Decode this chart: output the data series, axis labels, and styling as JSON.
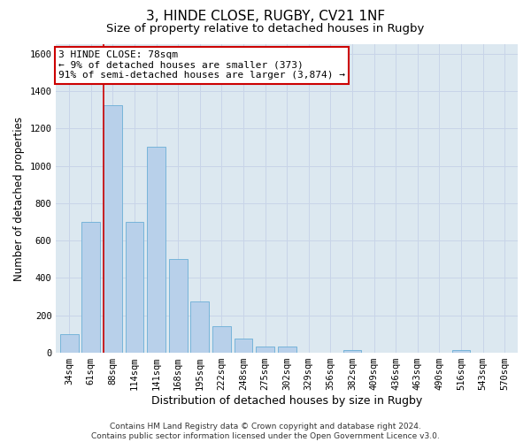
{
  "title1": "3, HINDE CLOSE, RUGBY, CV21 1NF",
  "title2": "Size of property relative to detached houses in Rugby",
  "xlabel": "Distribution of detached houses by size in Rugby",
  "ylabel": "Number of detached properties",
  "bar_labels": [
    "34sqm",
    "61sqm",
    "88sqm",
    "114sqm",
    "141sqm",
    "168sqm",
    "195sqm",
    "222sqm",
    "248sqm",
    "275sqm",
    "302sqm",
    "329sqm",
    "356sqm",
    "382sqm",
    "409sqm",
    "436sqm",
    "463sqm",
    "490sqm",
    "516sqm",
    "543sqm",
    "570sqm"
  ],
  "bar_values": [
    100,
    700,
    1325,
    700,
    1100,
    500,
    275,
    140,
    75,
    35,
    35,
    0,
    0,
    15,
    0,
    0,
    0,
    0,
    15,
    0,
    0
  ],
  "bar_color": "#b8d0ea",
  "bar_edge_color": "#6aaed6",
  "vline_x_index": 2,
  "vline_color": "#cc0000",
  "annotation_text": "3 HINDE CLOSE: 78sqm\n← 9% of detached houses are smaller (373)\n91% of semi-detached houses are larger (3,874) →",
  "annotation_box_color": "#ffffff",
  "annotation_box_edge": "#cc0000",
  "ylim": [
    0,
    1650
  ],
  "yticks": [
    0,
    200,
    400,
    600,
    800,
    1000,
    1200,
    1400,
    1600
  ],
  "grid_color": "#c8d4e8",
  "bg_color": "#dce8f0",
  "footer": "Contains HM Land Registry data © Crown copyright and database right 2024.\nContains public sector information licensed under the Open Government Licence v3.0.",
  "title1_fontsize": 11,
  "title2_fontsize": 9.5,
  "xlabel_fontsize": 9,
  "ylabel_fontsize": 8.5,
  "tick_fontsize": 7.5,
  "annotation_fontsize": 8,
  "footer_fontsize": 6.5
}
